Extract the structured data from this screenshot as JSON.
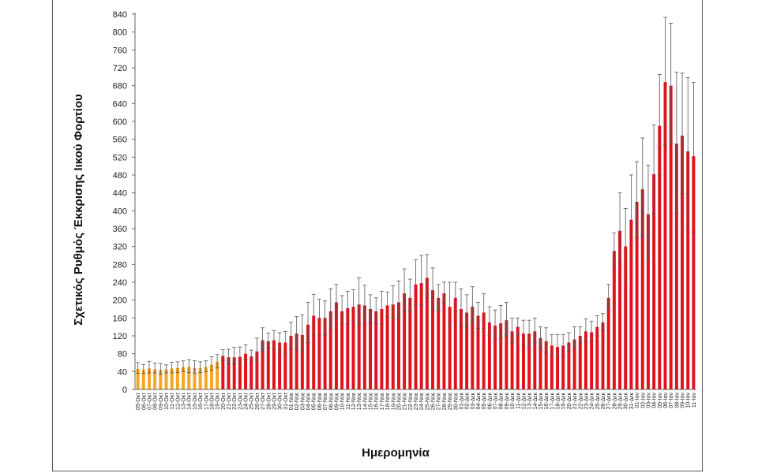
{
  "chart_data": {
    "type": "bar",
    "xlabel": "Ημερομηνία",
    "ylabel": "Σχετικός Ρυθμός Έκκρισης Ιικού Φορτίου",
    "ylim": [
      0,
      840
    ],
    "yticks": [
      0,
      40,
      80,
      120,
      160,
      200,
      240,
      280,
      320,
      360,
      400,
      440,
      480,
      520,
      560,
      600,
      640,
      680,
      720,
      760,
      800,
      840
    ],
    "grid": false,
    "colors": {
      "early": "#F5A623",
      "late": "#E0121B",
      "error": "#555555"
    },
    "categories": [
      "05-Οκτ",
      "06-Οκτ",
      "07-Οκτ",
      "08-Οκτ",
      "09-Οκτ",
      "10-Οκτ",
      "11-Οκτ",
      "12-Οκτ",
      "13-Οκτ",
      "14-Οκτ",
      "15-Οκτ",
      "16-Οκτ",
      "17-Οκτ",
      "18-Οκτ",
      "19-Οκτ",
      "20-Οκτ",
      "21-Οκτ",
      "22-Οκτ",
      "23-Οκτ",
      "24-Οκτ",
      "25-Οκτ",
      "26-Οκτ",
      "27-Οκτ",
      "28-Οκτ",
      "29-Οκτ",
      "30-Οκτ",
      "31-Οκτ",
      "01-Νοε",
      "02-Νοε",
      "03-Νοε",
      "04-Νοε",
      "05-Νοε",
      "06-Νοε",
      "07-Νοε",
      "08-Νοε",
      "09-Νοε",
      "10-Νοε",
      "11-Νοε",
      "12-Νοε",
      "13-Νοε",
      "14-Νοε",
      "15-Νοε",
      "16-Νοε",
      "17-Νοε",
      "18-Νοε",
      "19-Νοε",
      "20-Νοε",
      "21-Νοε",
      "22-Νοε",
      "23-Νοε",
      "24-Νοε",
      "25-Νοε",
      "26-Νοε",
      "27-Νοε",
      "28-Νοε",
      "29-Νοε",
      "30-Νοε",
      "01-Δεκ",
      "02-Δεκ",
      "03-Δεκ",
      "04-Δεκ",
      "05-Δεκ",
      "06-Δεκ",
      "07-Δεκ",
      "08-Δεκ",
      "09-Δεκ",
      "10-Δεκ",
      "11-Δεκ",
      "12-Δεκ",
      "13-Δεκ",
      "14-Δεκ",
      "15-Δεκ",
      "16-Δεκ",
      "17-Δεκ",
      "18-Δεκ",
      "19-Δεκ",
      "20-Δεκ",
      "21-Δεκ",
      "22-Δεκ",
      "23-Δεκ",
      "24-Δεκ",
      "25-Δεκ",
      "26-Δεκ",
      "27-Δεκ",
      "28-Δεκ",
      "29-Δεκ",
      "30-Δεκ",
      "31-Δεκ",
      "01-Ιαν",
      "02-Ιαν",
      "03-Ιαν",
      "04-Ιαν",
      "05-Ιαν",
      "06-Ιαν",
      "07-Ιαν",
      "08-Ιαν",
      "09-Ιαν",
      "10-Ιαν",
      "11-Ιαν"
    ],
    "labels_shown": [
      "05-Οκτ",
      "06-Οκτ",
      "07-Οκτ",
      "08-Οκτ",
      "09-Οκτ",
      "10-Οκτ",
      "11-Οκτ",
      "12-Οκτ",
      "13-Οκτ",
      "14-Οκτ",
      "15-Οκτ",
      "16-Οκτ",
      "17-Οκτ",
      "18-Οκτ",
      "19-Οκτ",
      "20-Οκτ",
      "21-Οκτ",
      "22-Οκτ",
      "23-Οκτ",
      "24-Οκτ",
      "25-Οκτ",
      "26-Οκτ",
      "27-Οκτ",
      "28-Οκτ",
      "29-Οκτ",
      "30-Οκτ",
      "31-Οκτ",
      "01-Νοε",
      "02-Νοε",
      "03-Νοε",
      "04-Νοε",
      "05-Νοε",
      "06-Νοε",
      "07-Νοε",
      "08-Νοε",
      "09-Νοε",
      "10-Νοε",
      "11-Νοε",
      "12-Νοε",
      "13-Νοε",
      "14-Νοε",
      "15-Νοε",
      "16-Νοε",
      "17-Νοε",
      "18-Νοε",
      "19-Νοε",
      "20-Νοε",
      "21-Νοε",
      "22-Νοε",
      "23-Νοε",
      "24-Νοε",
      "25-Νοε",
      "26-Νοε",
      "27-Νοε",
      "28-Νοε",
      "29-Νοε",
      "30-Νοε",
      "01-Δεκ",
      "02-Δεκ",
      "03-Δεκ",
      "04-Δεκ",
      "05-Δεκ",
      "06-Δεκ",
      "07-Δεκ",
      "08-Δεκ",
      "09-Δεκ",
      "10-Δεκ",
      "11-Δεκ",
      "12-Δεκ",
      "13-Δεκ",
      "14-Δεκ",
      "15-Δεκ",
      "16-Δεκ",
      "17-Δεκ",
      "18-Δεκ",
      "19-Δεκ",
      "20-Δεκ",
      "21-Δεκ",
      "22-Δεκ",
      "23-Δεκ",
      "24-Δεκ",
      "25-Δεκ",
      "26-Δεκ",
      "27-Δεκ",
      "28-Δεκ",
      "29-Δεκ",
      "30-Δεκ",
      "31-Δεκ",
      "01-Ιαν",
      "02-Ιαν",
      "03-Ιαν",
      "04-Ιαν",
      "05-Ιαν",
      "06-Ιαν",
      "07-Ιαν",
      "08-Ιαν",
      "09-Ιαν",
      "10-Ιαν",
      "11-Ιαν"
    ],
    "orange_count": 15,
    "values": [
      46,
      44,
      47,
      45,
      44,
      45,
      47,
      48,
      50,
      50,
      48,
      48,
      50,
      55,
      62,
      75,
      72,
      72,
      73,
      80,
      74,
      85,
      110,
      108,
      110,
      105,
      105,
      120,
      125,
      122,
      145,
      165,
      160,
      160,
      175,
      195,
      175,
      182,
      185,
      190,
      188,
      180,
      175,
      180,
      188,
      190,
      195,
      215,
      205,
      235,
      238,
      250,
      222,
      205,
      215,
      185,
      205,
      180,
      172,
      185,
      165,
      172,
      150,
      143,
      148,
      155,
      130,
      140,
      125,
      125,
      130,
      115,
      108,
      98,
      95,
      98,
      105,
      112,
      120,
      130,
      128,
      140,
      150,
      205,
      310,
      355,
      320,
      380,
      420,
      448,
      392,
      482,
      590,
      688,
      680,
      550,
      568,
      533,
      522
    ],
    "err_plus": [
      14,
      12,
      16,
      14,
      14,
      10,
      14,
      14,
      14,
      16,
      16,
      14,
      14,
      18,
      16,
      14,
      18,
      22,
      22,
      20,
      14,
      30,
      28,
      18,
      22,
      22,
      25,
      30,
      38,
      45,
      50,
      48,
      42,
      38,
      50,
      40,
      35,
      38,
      38,
      60,
      45,
      32,
      30,
      40,
      30,
      42,
      48,
      55,
      42,
      55,
      62,
      52,
      50,
      30,
      25,
      55,
      35,
      45,
      40,
      45,
      30,
      42,
      35,
      35,
      40,
      40,
      30,
      20,
      30,
      30,
      30,
      25,
      30,
      25,
      28,
      25,
      22,
      28,
      20,
      28,
      25,
      25,
      20,
      30,
      40,
      85,
      85,
      100,
      90,
      115,
      110,
      110,
      115,
      145,
      140,
      160,
      140,
      165,
      165
    ],
    "err_minus": [
      10,
      8,
      10,
      8,
      10,
      8,
      10,
      10,
      10,
      12,
      12,
      10,
      10,
      12,
      14,
      10,
      14,
      16,
      14,
      14,
      12,
      20,
      24,
      14,
      20,
      18,
      22,
      28,
      35,
      38,
      40,
      45,
      38,
      38,
      40,
      35,
      30,
      35,
      32,
      45,
      38,
      30,
      28,
      35,
      25,
      30,
      35,
      40,
      30,
      45,
      50,
      45,
      42,
      28,
      22,
      40,
      30,
      38,
      32,
      35,
      28,
      35,
      30,
      30,
      32,
      35,
      25,
      20,
      25,
      28,
      25,
      22,
      25,
      22,
      22,
      22,
      20,
      20,
      18,
      22,
      20,
      20,
      18,
      22,
      35,
      70,
      75,
      85,
      80,
      105,
      100,
      90,
      110,
      140,
      130,
      155,
      130,
      165,
      170
    ]
  }
}
